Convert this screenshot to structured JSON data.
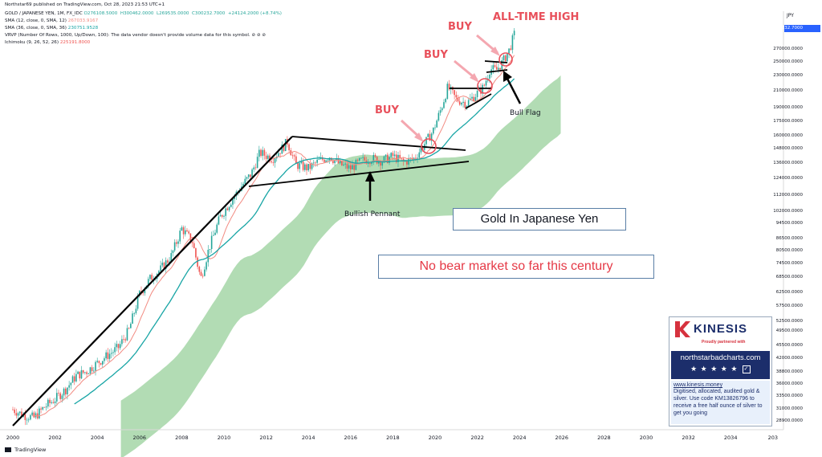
{
  "header": {
    "published": "Northstar69 published on TradingView.com, Oct 28, 2023 21:53 UTC+1",
    "symbol": "GOLD / JAPANESE YEN, 1M, FX_IDC",
    "ohlc": "O276108.5000  H300462.0000  L269535.0000  C300232.7000  +24124.2000 (+8.74%)",
    "sma12_label": "SMA (12, close, 0, SMA, 12)",
    "sma12_value": "267033.9167",
    "sma36_label": "SMA (36, close, 0, SMA, 36)",
    "sma36_value": "230751.9528",
    "vrvp": "VRVP (Number Of Rows, 1000, Up/Down, 100): The data vendor doesn't provide volume data for this symbol.  ⊘ ⊘ ⊘",
    "ichimoku_label": "Ichimoku (9, 26, 52, 26)",
    "ichimoku_value": "225191.8000"
  },
  "currency": "JPY",
  "last_price": "300232.7000",
  "footer": "TradingView",
  "colors": {
    "candle_up": "#26a69a",
    "candle_down": "#ef5350",
    "sma12": "#f28b82",
    "sma36": "#18a5a5",
    "cloud": "#a5d6a7",
    "annotation_red": "#e8505b",
    "price_label_bg": "#2962ff",
    "kinesis_red": "#d6323e",
    "kinesis_navy": "#1c2e6b"
  },
  "annotations": {
    "buy1": "BUY",
    "buy2": "BUY",
    "buy3": "BUY",
    "ath": "ALL-TIME HIGH",
    "bull_flag": "Bull Flag",
    "pennant": "Bullish Pennant",
    "title_box": "Gold In Japanese Yen",
    "subtitle_box": "No bear market so far this century"
  },
  "kinesis": {
    "brand": "KINESIS",
    "tagline": "Proudly partnered with",
    "site": "northstarbadcharts.com",
    "stars": "★ ★ ★ ★ ★",
    "link": "www.kinesis.money",
    "promo": "Digitised, allocated, audited gold & silver. Use code KM13826796 to receive a free half ounce of silver to get you going"
  },
  "chart_data": {
    "type": "candlestick",
    "title": "GOLD / JAPANESE YEN, 1M, FX_IDC",
    "ylabel": "JPY",
    "y_scale": "log",
    "ylim": [
      28000,
      305000
    ],
    "x_ticks": [
      "2000",
      "2002",
      "2004",
      "2006",
      "2008",
      "2010",
      "2012",
      "2014",
      "2016",
      "2018",
      "2020",
      "2022",
      "2024",
      "2026",
      "2028",
      "2030",
      "2032",
      "2034",
      "203"
    ],
    "y_ticks": [
      "300232.7000",
      "270000.0000",
      "250000.0000",
      "230000.0000",
      "210000.0000",
      "190000.0000",
      "175000.0000",
      "160000.0000",
      "148000.0000",
      "136000.0000",
      "124000.0000",
      "112000.0000",
      "102000.0000",
      "94500.0000",
      "86500.0000",
      "80500.0000",
      "74500.0000",
      "68500.0000",
      "62500.0000",
      "57500.0000",
      "52500.0000",
      "49500.0000",
      "45500.0000",
      "42000.0000",
      "38800.0000",
      "36000.0000",
      "33500.0000",
      "31000.0000",
      "28900.0000"
    ],
    "price_path": [
      [
        2000.0,
        31000
      ],
      [
        2000.5,
        30000
      ],
      [
        2001.0,
        29500
      ],
      [
        2001.5,
        31500
      ],
      [
        2002.0,
        33000
      ],
      [
        2002.5,
        35000
      ],
      [
        2003.0,
        38000
      ],
      [
        2003.5,
        39000
      ],
      [
        2004.0,
        41000
      ],
      [
        2004.5,
        43000
      ],
      [
        2005.0,
        45000
      ],
      [
        2005.5,
        50000
      ],
      [
        2006.0,
        62000
      ],
      [
        2006.5,
        68000
      ],
      [
        2007.0,
        72000
      ],
      [
        2007.5,
        78000
      ],
      [
        2008.0,
        92000
      ],
      [
        2008.5,
        85000
      ],
      [
        2008.9,
        68000
      ],
      [
        2009.3,
        82000
      ],
      [
        2009.8,
        98000
      ],
      [
        2010.3,
        108000
      ],
      [
        2010.8,
        118000
      ],
      [
        2011.3,
        128000
      ],
      [
        2011.7,
        145000
      ],
      [
        2012.3,
        140000
      ],
      [
        2012.8,
        150000
      ],
      [
        2013.0,
        155000
      ],
      [
        2013.4,
        135000
      ],
      [
        2014.0,
        132000
      ],
      [
        2014.5,
        138000
      ],
      [
        2015.0,
        142000
      ],
      [
        2015.5,
        135000
      ],
      [
        2016.0,
        132000
      ],
      [
        2016.5,
        138000
      ],
      [
        2017.0,
        140000
      ],
      [
        2017.5,
        138000
      ],
      [
        2018.0,
        142000
      ],
      [
        2018.5,
        137000
      ],
      [
        2019.0,
        140000
      ],
      [
        2019.4,
        150000
      ],
      [
        2019.9,
        165000
      ],
      [
        2020.3,
        190000
      ],
      [
        2020.6,
        215000
      ],
      [
        2021.0,
        200000
      ],
      [
        2021.5,
        195000
      ],
      [
        2021.9,
        205000
      ],
      [
        2022.3,
        215000
      ],
      [
        2022.6,
        240000
      ],
      [
        2022.9,
        238000
      ],
      [
        2023.2,
        250000
      ],
      [
        2023.5,
        268000
      ],
      [
        2023.8,
        300000
      ]
    ],
    "series": [
      {
        "name": "SMA (12, close, 0, SMA, 12)",
        "last": 267033.9167
      },
      {
        "name": "SMA (36, close, 0, SMA, 36)",
        "last": 230751.9528
      },
      {
        "name": "Ichimoku (9, 26, 52, 26)",
        "last": 225191.8
      }
    ],
    "grid": false
  }
}
